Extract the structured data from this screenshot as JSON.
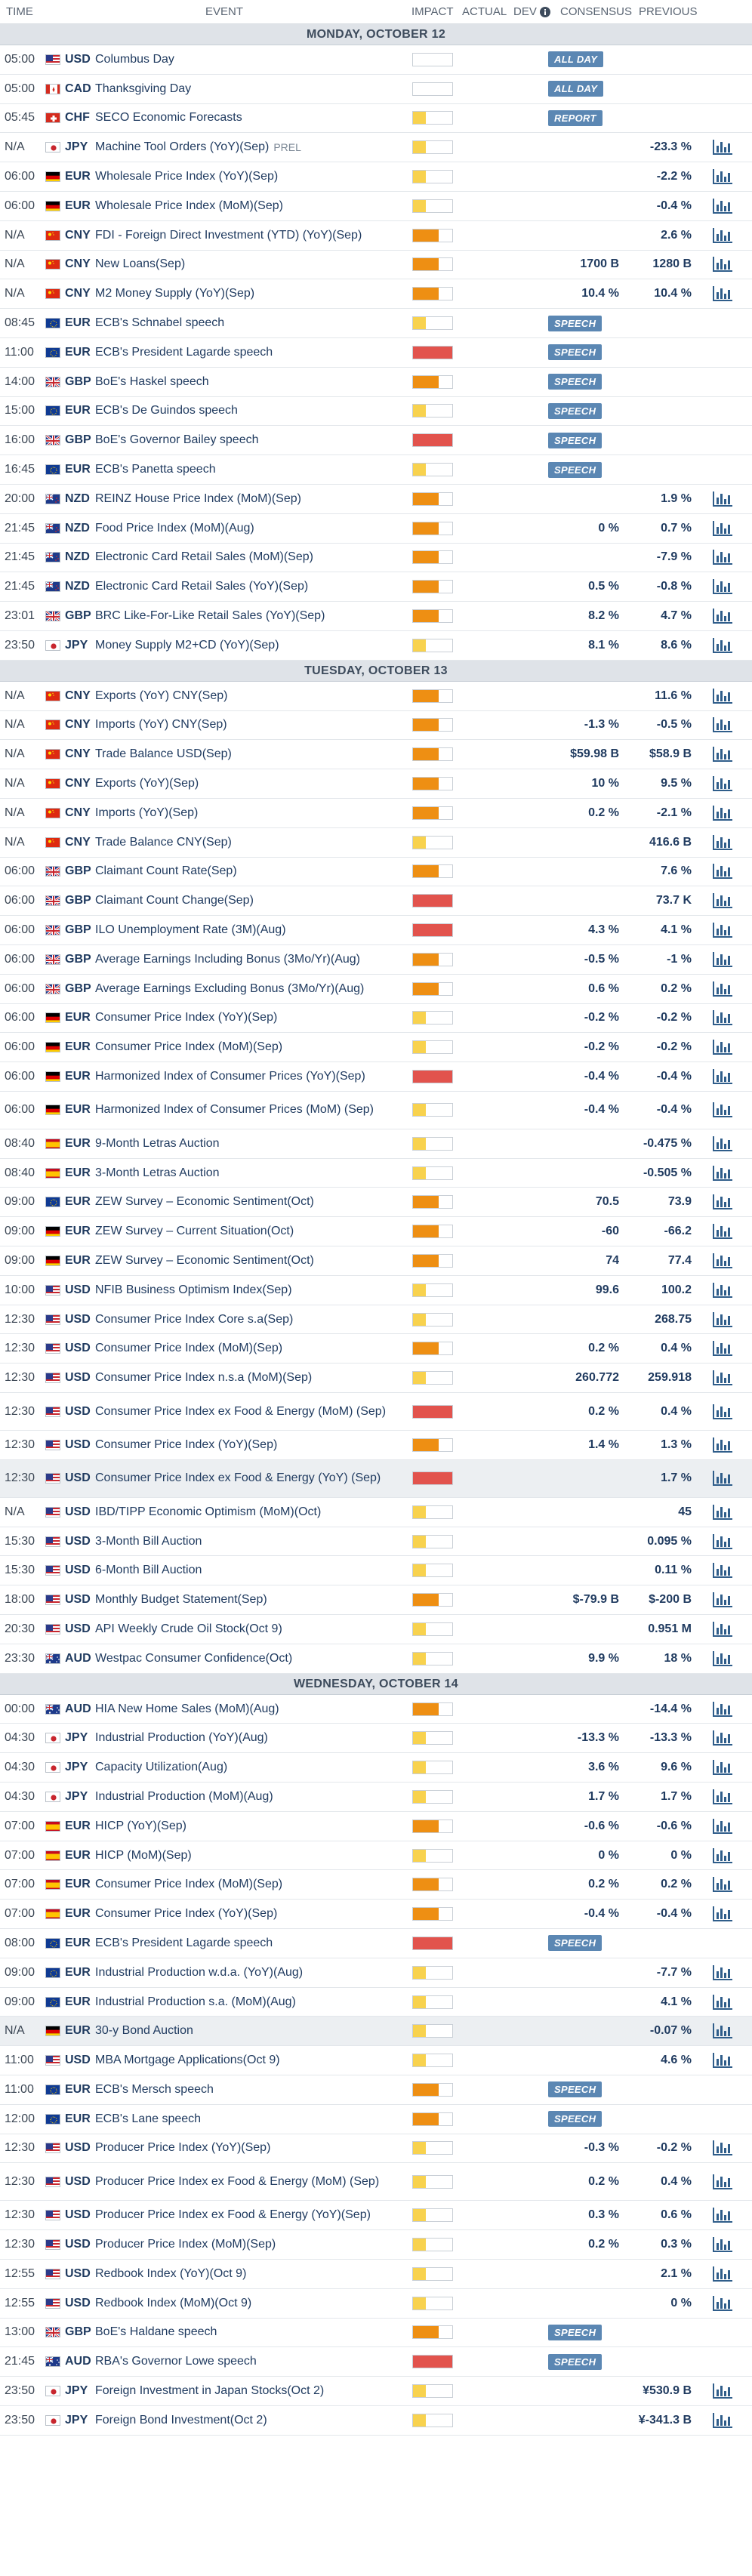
{
  "header": {
    "time": "TIME",
    "event": "EVENT",
    "impact": "IMPACT",
    "actual": "ACTUAL",
    "dev": "DEV",
    "consensus": "CONSENSUS",
    "previous": "PREVIOUS",
    "info_icon": "info-icon"
  },
  "colors": {
    "low": "#f8d24e",
    "medium": "#ee8f13",
    "high": "#e2534d",
    "badge": "#5b87b3",
    "text": "#1f3a5f"
  },
  "sections": [
    {
      "date": "MONDAY, OCTOBER 12",
      "rows": [
        {
          "time": "05:00",
          "flag": "us",
          "cur": "USD",
          "event": "Columbus Day",
          "impact": "none",
          "badge": "ALL DAY",
          "chart": false
        },
        {
          "time": "05:00",
          "flag": "ca",
          "cur": "CAD",
          "event": "Thanksgiving Day",
          "impact": "none",
          "badge": "ALL DAY",
          "chart": false
        },
        {
          "time": "05:45",
          "flag": "ch",
          "cur": "CHF",
          "event": "SECO Economic Forecasts",
          "impact": "low",
          "badge": "REPORT",
          "chart": false
        },
        {
          "time": "N/A",
          "flag": "jp",
          "cur": "JPY",
          "event": "Machine Tool Orders (YoY)(Sep)",
          "tag": "PREL",
          "impact": "low",
          "prev": "-23.3 %",
          "chart": true
        },
        {
          "time": "06:00",
          "flag": "de",
          "cur": "EUR",
          "event": "Wholesale Price Index (YoY)(Sep)",
          "impact": "low",
          "prev": "-2.2 %",
          "chart": true
        },
        {
          "time": "06:00",
          "flag": "de",
          "cur": "EUR",
          "event": "Wholesale Price Index (MoM)(Sep)",
          "impact": "low",
          "prev": "-0.4 %",
          "chart": true
        },
        {
          "time": "N/A",
          "flag": "cn",
          "cur": "CNY",
          "event": "FDI - Foreign Direct Investment (YTD) (YoY)(Sep)",
          "impact": "medium",
          "prev": "2.6 %",
          "chart": true
        },
        {
          "time": "N/A",
          "flag": "cn",
          "cur": "CNY",
          "event": "New Loans(Sep)",
          "impact": "medium",
          "cons": "1700 B",
          "prev": "1280 B",
          "chart": true
        },
        {
          "time": "N/A",
          "flag": "cn",
          "cur": "CNY",
          "event": "M2 Money Supply (YoY)(Sep)",
          "impact": "medium",
          "cons": "10.4 %",
          "prev": "10.4 %",
          "chart": true
        },
        {
          "time": "08:45",
          "flag": "eu",
          "cur": "EUR",
          "event": "ECB's Schnabel speech",
          "impact": "low",
          "badge": "SPEECH",
          "chart": false
        },
        {
          "time": "11:00",
          "flag": "eu",
          "cur": "EUR",
          "event": "ECB's President Lagarde speech",
          "impact": "high",
          "badge": "SPEECH",
          "chart": false
        },
        {
          "time": "14:00",
          "flag": "gb",
          "cur": "GBP",
          "event": "BoE's Haskel speech",
          "impact": "medium",
          "badge": "SPEECH",
          "chart": false
        },
        {
          "time": "15:00",
          "flag": "eu",
          "cur": "EUR",
          "event": "ECB's De Guindos speech",
          "impact": "low",
          "badge": "SPEECH",
          "chart": false
        },
        {
          "time": "16:00",
          "flag": "gb",
          "cur": "GBP",
          "event": "BoE's Governor Bailey speech",
          "impact": "high",
          "badge": "SPEECH",
          "chart": false
        },
        {
          "time": "16:45",
          "flag": "eu",
          "cur": "EUR",
          "event": "ECB's Panetta speech",
          "impact": "low",
          "badge": "SPEECH",
          "chart": false
        },
        {
          "time": "20:00",
          "flag": "nz",
          "cur": "NZD",
          "event": "REINZ House Price Index (MoM)(Sep)",
          "impact": "medium",
          "prev": "1.9 %",
          "chart": true
        },
        {
          "time": "21:45",
          "flag": "nz",
          "cur": "NZD",
          "event": "Food Price Index (MoM)(Aug)",
          "impact": "medium",
          "cons": "0 %",
          "prev": "0.7 %",
          "chart": true
        },
        {
          "time": "21:45",
          "flag": "nz",
          "cur": "NZD",
          "event": "Electronic Card Retail Sales (MoM)(Sep)",
          "impact": "medium",
          "prev": "-7.9 %",
          "chart": true
        },
        {
          "time": "21:45",
          "flag": "nz",
          "cur": "NZD",
          "event": "Electronic Card Retail Sales (YoY)(Sep)",
          "impact": "medium",
          "cons": "0.5 %",
          "prev": "-0.8 %",
          "chart": true
        },
        {
          "time": "23:01",
          "flag": "gb",
          "cur": "GBP",
          "event": "BRC Like-For-Like Retail Sales (YoY)(Sep)",
          "impact": "medium",
          "cons": "8.2 %",
          "prev": "4.7 %",
          "chart": true
        },
        {
          "time": "23:50",
          "flag": "jp",
          "cur": "JPY",
          "event": "Money Supply M2+CD (YoY)(Sep)",
          "impact": "low",
          "cons": "8.1 %",
          "prev": "8.6 %",
          "chart": true
        }
      ]
    },
    {
      "date": "TUESDAY, OCTOBER 13",
      "rows": [
        {
          "time": "N/A",
          "flag": "cn",
          "cur": "CNY",
          "event": "Exports (YoY) CNY(Sep)",
          "impact": "medium",
          "prev": "11.6 %",
          "chart": true
        },
        {
          "time": "N/A",
          "flag": "cn",
          "cur": "CNY",
          "event": "Imports (YoY) CNY(Sep)",
          "impact": "medium",
          "cons": "-1.3 %",
          "prev": "-0.5 %",
          "chart": true
        },
        {
          "time": "N/A",
          "flag": "cn",
          "cur": "CNY",
          "event": "Trade Balance USD(Sep)",
          "impact": "medium",
          "cons": "$59.98 B",
          "prev": "$58.9 B",
          "chart": true
        },
        {
          "time": "N/A",
          "flag": "cn",
          "cur": "CNY",
          "event": "Exports (YoY)(Sep)",
          "impact": "medium",
          "cons": "10 %",
          "prev": "9.5 %",
          "chart": true
        },
        {
          "time": "N/A",
          "flag": "cn",
          "cur": "CNY",
          "event": "Imports (YoY)(Sep)",
          "impact": "medium",
          "cons": "0.2 %",
          "prev": "-2.1 %",
          "chart": true
        },
        {
          "time": "N/A",
          "flag": "cn",
          "cur": "CNY",
          "event": "Trade Balance CNY(Sep)",
          "impact": "low",
          "prev": "416.6 B",
          "chart": true
        },
        {
          "time": "06:00",
          "flag": "gb",
          "cur": "GBP",
          "event": "Claimant Count Rate(Sep)",
          "impact": "medium",
          "prev": "7.6 %",
          "chart": true
        },
        {
          "time": "06:00",
          "flag": "gb",
          "cur": "GBP",
          "event": "Claimant Count Change(Sep)",
          "impact": "high",
          "prev": "73.7 K",
          "chart": true
        },
        {
          "time": "06:00",
          "flag": "gb",
          "cur": "GBP",
          "event": "ILO Unemployment Rate (3M)(Aug)",
          "impact": "high",
          "cons": "4.3 %",
          "prev": "4.1 %",
          "chart": true
        },
        {
          "time": "06:00",
          "flag": "gb",
          "cur": "GBP",
          "event": "Average Earnings Including Bonus (3Mo/Yr)(Aug)",
          "impact": "medium",
          "cons": "-0.5 %",
          "prev": "-1 %",
          "chart": true
        },
        {
          "time": "06:00",
          "flag": "gb",
          "cur": "GBP",
          "event": "Average Earnings Excluding Bonus (3Mo/Yr)(Aug)",
          "impact": "medium",
          "cons": "0.6 %",
          "prev": "0.2 %",
          "chart": true
        },
        {
          "time": "06:00",
          "flag": "de",
          "cur": "EUR",
          "event": "Consumer Price Index (YoY)(Sep)",
          "impact": "low",
          "cons": "-0.2 %",
          "prev": "-0.2 %",
          "chart": true
        },
        {
          "time": "06:00",
          "flag": "de",
          "cur": "EUR",
          "event": "Consumer Price Index (MoM)(Sep)",
          "impact": "low",
          "cons": "-0.2 %",
          "prev": "-0.2 %",
          "chart": true
        },
        {
          "time": "06:00",
          "flag": "de",
          "cur": "EUR",
          "event": "Harmonized Index of Consumer Prices (YoY)(Sep)",
          "impact": "high",
          "cons": "-0.4 %",
          "prev": "-0.4 %",
          "chart": true
        },
        {
          "time": "06:00",
          "flag": "de",
          "cur": "EUR",
          "event": "Harmonized Index of Consumer Prices (MoM) (Sep)",
          "impact": "low",
          "cons": "-0.4 %",
          "prev": "-0.4 %",
          "chart": true,
          "tall": true
        },
        {
          "time": "08:40",
          "flag": "es",
          "cur": "EUR",
          "event": "9-Month Letras Auction",
          "impact": "low",
          "prev": "-0.475 %",
          "chart": true
        },
        {
          "time": "08:40",
          "flag": "es",
          "cur": "EUR",
          "event": "3-Month Letras Auction",
          "impact": "low",
          "prev": "-0.505 %",
          "chart": true
        },
        {
          "time": "09:00",
          "flag": "eu",
          "cur": "EUR",
          "event": "ZEW Survey – Economic Sentiment(Oct)",
          "impact": "medium",
          "cons": "70.5",
          "prev": "73.9",
          "chart": true
        },
        {
          "time": "09:00",
          "flag": "de",
          "cur": "EUR",
          "event": "ZEW Survey – Current Situation(Oct)",
          "impact": "medium",
          "cons": "-60",
          "prev": "-66.2",
          "chart": true
        },
        {
          "time": "09:00",
          "flag": "de",
          "cur": "EUR",
          "event": "ZEW Survey – Economic Sentiment(Oct)",
          "impact": "medium",
          "cons": "74",
          "prev": "77.4",
          "chart": true
        },
        {
          "time": "10:00",
          "flag": "us",
          "cur": "USD",
          "event": "NFIB Business Optimism Index(Sep)",
          "impact": "low",
          "cons": "99.6",
          "prev": "100.2",
          "chart": true
        },
        {
          "time": "12:30",
          "flag": "us",
          "cur": "USD",
          "event": "Consumer Price Index Core s.a(Sep)",
          "impact": "low",
          "prev": "268.75",
          "chart": true
        },
        {
          "time": "12:30",
          "flag": "us",
          "cur": "USD",
          "event": "Consumer Price Index (MoM)(Sep)",
          "impact": "medium",
          "cons": "0.2 %",
          "prev": "0.4 %",
          "chart": true
        },
        {
          "time": "12:30",
          "flag": "us",
          "cur": "USD",
          "event": "Consumer Price Index n.s.a (MoM)(Sep)",
          "impact": "low",
          "cons": "260.772",
          "prev": "259.918",
          "chart": true
        },
        {
          "time": "12:30",
          "flag": "us",
          "cur": "USD",
          "event": "Consumer Price Index ex Food & Energy (MoM) (Sep)",
          "impact": "high",
          "cons": "0.2 %",
          "prev": "0.4 %",
          "chart": true,
          "tall": true
        },
        {
          "time": "12:30",
          "flag": "us",
          "cur": "USD",
          "event": "Consumer Price Index (YoY)(Sep)",
          "impact": "medium",
          "cons": "1.4 %",
          "prev": "1.3 %",
          "chart": true
        },
        {
          "time": "12:30",
          "flag": "us",
          "cur": "USD",
          "event": "Consumer Price Index ex Food & Energy (YoY) (Sep)",
          "impact": "high",
          "prev": "1.7 %",
          "chart": true,
          "tall": true,
          "hl": true
        },
        {
          "time": "N/A",
          "flag": "us",
          "cur": "USD",
          "event": "IBD/TIPP Economic Optimism (MoM)(Oct)",
          "impact": "low",
          "prev": "45",
          "chart": true
        },
        {
          "time": "15:30",
          "flag": "us",
          "cur": "USD",
          "event": "3-Month Bill Auction",
          "impact": "low",
          "prev": "0.095 %",
          "chart": true
        },
        {
          "time": "15:30",
          "flag": "us",
          "cur": "USD",
          "event": "6-Month Bill Auction",
          "impact": "low",
          "prev": "0.11 %",
          "chart": true
        },
        {
          "time": "18:00",
          "flag": "us",
          "cur": "USD",
          "event": "Monthly Budget Statement(Sep)",
          "impact": "medium",
          "cons": "$-79.9 B",
          "prev": "$-200 B",
          "chart": true
        },
        {
          "time": "20:30",
          "flag": "us",
          "cur": "USD",
          "event": "API Weekly Crude Oil Stock(Oct 9)",
          "impact": "low",
          "prev": "0.951 M",
          "chart": true
        },
        {
          "time": "23:30",
          "flag": "au",
          "cur": "AUD",
          "event": "Westpac Consumer Confidence(Oct)",
          "impact": "low",
          "cons": "9.9 %",
          "prev": "18 %",
          "chart": true
        }
      ]
    },
    {
      "date": "WEDNESDAY, OCTOBER 14",
      "rows": [
        {
          "time": "00:00",
          "flag": "au",
          "cur": "AUD",
          "event": "HIA New Home Sales (MoM)(Aug)",
          "impact": "medium",
          "prev": "-14.4 %",
          "chart": true
        },
        {
          "time": "04:30",
          "flag": "jp",
          "cur": "JPY",
          "event": "Industrial Production (YoY)(Aug)",
          "impact": "low",
          "cons": "-13.3 %",
          "prev": "-13.3 %",
          "chart": true
        },
        {
          "time": "04:30",
          "flag": "jp",
          "cur": "JPY",
          "event": "Capacity Utilization(Aug)",
          "impact": "low",
          "cons": "3.6 %",
          "prev": "9.6 %",
          "chart": true
        },
        {
          "time": "04:30",
          "flag": "jp",
          "cur": "JPY",
          "event": "Industrial Production (MoM)(Aug)",
          "impact": "low",
          "cons": "1.7 %",
          "prev": "1.7 %",
          "chart": true
        },
        {
          "time": "07:00",
          "flag": "es",
          "cur": "EUR",
          "event": "HICP (YoY)(Sep)",
          "impact": "medium",
          "cons": "-0.6 %",
          "prev": "-0.6 %",
          "chart": true
        },
        {
          "time": "07:00",
          "flag": "es",
          "cur": "EUR",
          "event": "HICP (MoM)(Sep)",
          "impact": "low",
          "cons": "0 %",
          "prev": "0 %",
          "chart": true
        },
        {
          "time": "07:00",
          "flag": "es",
          "cur": "EUR",
          "event": "Consumer Price Index (MoM)(Sep)",
          "impact": "medium",
          "cons": "0.2 %",
          "prev": "0.2 %",
          "chart": true
        },
        {
          "time": "07:00",
          "flag": "es",
          "cur": "EUR",
          "event": "Consumer Price Index (YoY)(Sep)",
          "impact": "medium",
          "cons": "-0.4 %",
          "prev": "-0.4 %",
          "chart": true
        },
        {
          "time": "08:00",
          "flag": "eu",
          "cur": "EUR",
          "event": "ECB's President Lagarde speech",
          "impact": "high",
          "badge": "SPEECH",
          "chart": false
        },
        {
          "time": "09:00",
          "flag": "eu",
          "cur": "EUR",
          "event": "Industrial Production w.d.a. (YoY)(Aug)",
          "impact": "low",
          "prev": "-7.7 %",
          "chart": true
        },
        {
          "time": "09:00",
          "flag": "eu",
          "cur": "EUR",
          "event": "Industrial Production s.a. (MoM)(Aug)",
          "impact": "low",
          "prev": "4.1 %",
          "chart": true
        },
        {
          "time": "N/A",
          "flag": "de",
          "cur": "EUR",
          "event": "30-y Bond Auction",
          "impact": "low",
          "prev": "-0.07 %",
          "chart": true,
          "hl": true
        },
        {
          "time": "11:00",
          "flag": "us",
          "cur": "USD",
          "event": "MBA Mortgage Applications(Oct 9)",
          "impact": "low",
          "prev": "4.6 %",
          "chart": true
        },
        {
          "time": "11:00",
          "flag": "eu",
          "cur": "EUR",
          "event": "ECB's Mersch speech",
          "impact": "medium",
          "badge": "SPEECH",
          "chart": false
        },
        {
          "time": "12:00",
          "flag": "eu",
          "cur": "EUR",
          "event": "ECB's Lane speech",
          "impact": "medium",
          "badge": "SPEECH",
          "chart": false
        },
        {
          "time": "12:30",
          "flag": "us",
          "cur": "USD",
          "event": "Producer Price Index (YoY)(Sep)",
          "impact": "low",
          "cons": "-0.3 %",
          "prev": "-0.2 %",
          "chart": true
        },
        {
          "time": "12:30",
          "flag": "us",
          "cur": "USD",
          "event": "Producer Price Index ex Food & Energy (MoM) (Sep)",
          "impact": "low",
          "cons": "0.2 %",
          "prev": "0.4 %",
          "chart": true,
          "tall": true
        },
        {
          "time": "12:30",
          "flag": "us",
          "cur": "USD",
          "event": "Producer Price Index ex Food & Energy (YoY)(Sep)",
          "impact": "low",
          "cons": "0.3 %",
          "prev": "0.6 %",
          "chart": true
        },
        {
          "time": "12:30",
          "flag": "us",
          "cur": "USD",
          "event": "Producer Price Index (MoM)(Sep)",
          "impact": "low",
          "cons": "0.2 %",
          "prev": "0.3 %",
          "chart": true
        },
        {
          "time": "12:55",
          "flag": "us",
          "cur": "USD",
          "event": "Redbook Index (YoY)(Oct 9)",
          "impact": "low",
          "prev": "2.1 %",
          "chart": true
        },
        {
          "time": "12:55",
          "flag": "us",
          "cur": "USD",
          "event": "Redbook Index (MoM)(Oct 9)",
          "impact": "low",
          "prev": "0 %",
          "chart": true
        },
        {
          "time": "13:00",
          "flag": "gb",
          "cur": "GBP",
          "event": "BoE's Haldane speech",
          "impact": "medium",
          "badge": "SPEECH",
          "chart": false
        },
        {
          "time": "21:45",
          "flag": "au",
          "cur": "AUD",
          "event": "RBA's Governor Lowe speech",
          "impact": "high",
          "badge": "SPEECH",
          "chart": false
        },
        {
          "time": "23:50",
          "flag": "jp",
          "cur": "JPY",
          "event": "Foreign Investment in Japan Stocks(Oct 2)",
          "impact": "low",
          "prev": "¥530.9 B",
          "chart": true
        },
        {
          "time": "23:50",
          "flag": "jp",
          "cur": "JPY",
          "event": "Foreign Bond Investment(Oct 2)",
          "impact": "low",
          "prev": "¥-341.3 B",
          "chart": true
        }
      ]
    }
  ]
}
